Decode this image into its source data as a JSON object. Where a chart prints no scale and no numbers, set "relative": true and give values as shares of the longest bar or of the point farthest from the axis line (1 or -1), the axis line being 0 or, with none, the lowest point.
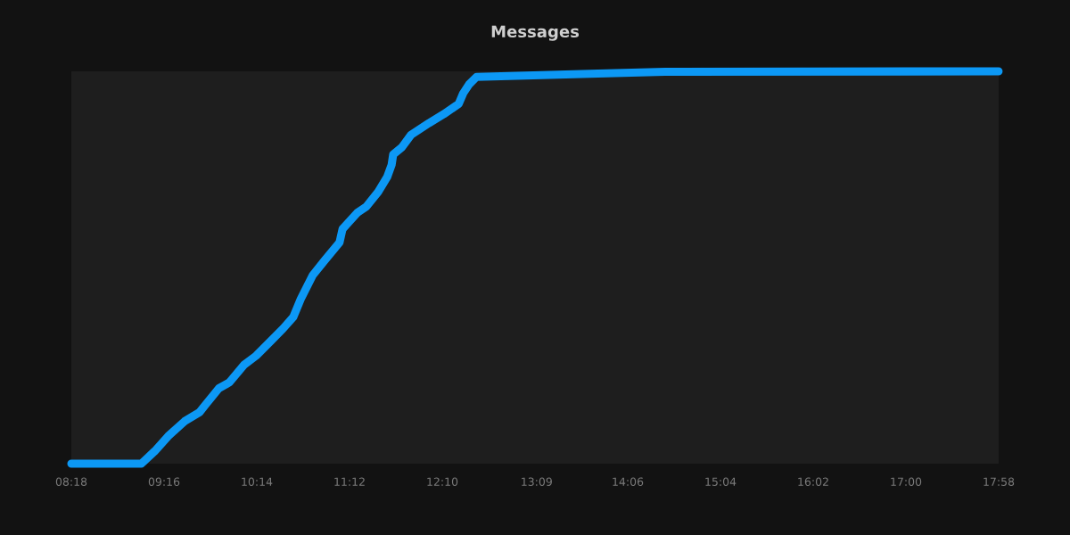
{
  "chart_data": {
    "type": "line",
    "title": "Messages",
    "relative": true,
    "x": [
      8.3,
      9.03,
      9.17,
      9.309,
      9.481,
      9.636,
      9.698,
      9.838,
      9.947,
      10.101,
      10.226,
      10.381,
      10.506,
      10.614,
      10.692,
      10.816,
      10.94,
      11.096,
      11.127,
      11.282,
      11.375,
      11.499,
      11.593,
      11.639,
      11.655,
      11.748,
      11.841,
      12.028,
      12.183,
      12.338,
      12.385,
      12.447,
      12.525,
      13.705,
      14.488,
      17.966
    ],
    "series": [
      {
        "color": "#0c98f5",
        "values": [
          0,
          0,
          0.032,
          0.07,
          0.108,
          0.131,
          0.15,
          0.192,
          0.207,
          0.252,
          0.275,
          0.313,
          0.344,
          0.374,
          0.42,
          0.48,
          0.518,
          0.564,
          0.598,
          0.64,
          0.655,
          0.693,
          0.731,
          0.762,
          0.788,
          0.807,
          0.838,
          0.868,
          0.891,
          0.917,
          0.944,
          0.967,
          0.986,
          0.994,
          0.999,
          1
        ]
      }
    ],
    "xlim": [
      8.3,
      17.9667
    ],
    "xticks": [
      {
        "value": 8.3,
        "label": "08:18"
      },
      {
        "value": 9.2667,
        "label": "09:16"
      },
      {
        "value": 10.2333,
        "label": "10:14"
      },
      {
        "value": 11.2,
        "label": "11:12"
      },
      {
        "value": 12.1667,
        "label": "12:10"
      },
      {
        "value": 13.15,
        "label": "13:09"
      },
      {
        "value": 14.1,
        "label": "14:06"
      },
      {
        "value": 15.0667,
        "label": "15:04"
      },
      {
        "value": 16.0333,
        "label": "16:02"
      },
      {
        "value": 17.0,
        "label": "17:00"
      },
      {
        "value": 17.9667,
        "label": "17:58"
      }
    ]
  }
}
